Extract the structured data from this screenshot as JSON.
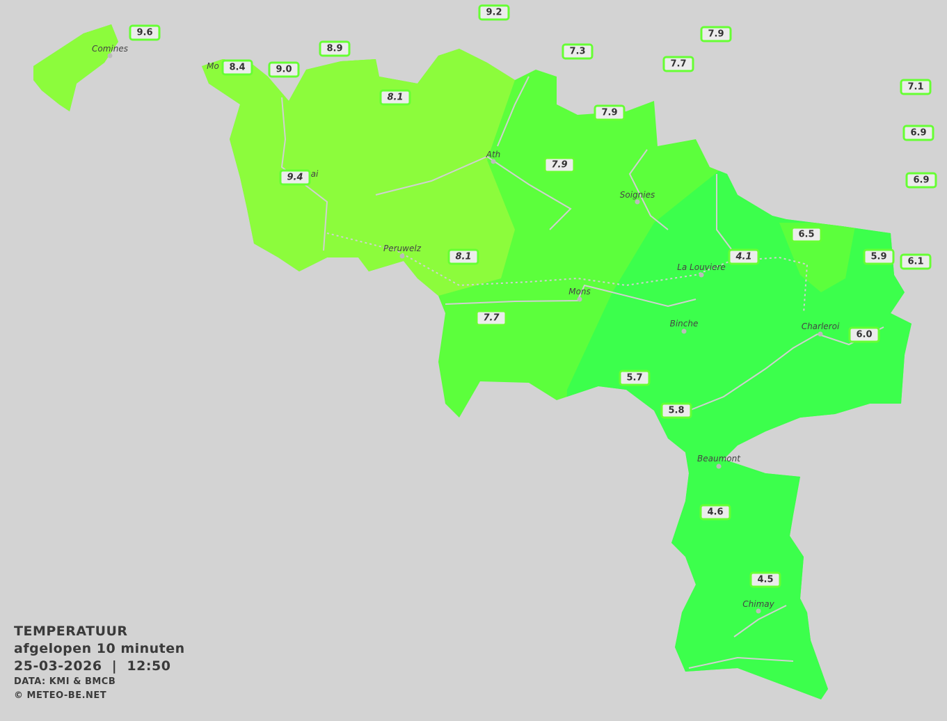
{
  "colors": {
    "background": "#d3d3d3",
    "zone_warm": "#8cfc3c",
    "zone_mid": "#5cff3c",
    "zone_cool": "#3cff4c",
    "label_border": "#66ff33",
    "road": "#d0d0d0"
  },
  "cities": [
    "Comines",
    "Mo",
    "ai",
    "Ath",
    "Soignies",
    "Peruwelz",
    "La Louviere",
    "Mons",
    "Binche",
    "Charleroi",
    "Beaumont",
    "Chimay"
  ],
  "stations": [
    {
      "value": "9.2"
    },
    {
      "value": "9.6"
    },
    {
      "value": "8.9"
    },
    {
      "value": "7.9"
    },
    {
      "value": "7.3"
    },
    {
      "value": "7.7"
    },
    {
      "value": "8.4"
    },
    {
      "value": "9.0"
    },
    {
      "value": "7.1"
    },
    {
      "value": "8.1"
    },
    {
      "value": "7.9"
    },
    {
      "value": "6.9"
    },
    {
      "value": "7.9"
    },
    {
      "value": "9.4"
    },
    {
      "value": "6.9"
    },
    {
      "value": "6.5"
    },
    {
      "value": "4.1"
    },
    {
      "value": "8.1"
    },
    {
      "value": "5.9"
    },
    {
      "value": "6.1"
    },
    {
      "value": "7.7"
    },
    {
      "value": "6.0"
    },
    {
      "value": "5.7"
    },
    {
      "value": "5.8"
    },
    {
      "value": "4.6"
    },
    {
      "value": "4.5"
    }
  ],
  "legend": {
    "title": "TEMPERATUUR",
    "period": "afgelopen 10 minuten",
    "datetime": "25-03-2026  |  12:50",
    "source": "DATA: KMI & BMCB",
    "copyright": "© METEO-BE.NET"
  }
}
